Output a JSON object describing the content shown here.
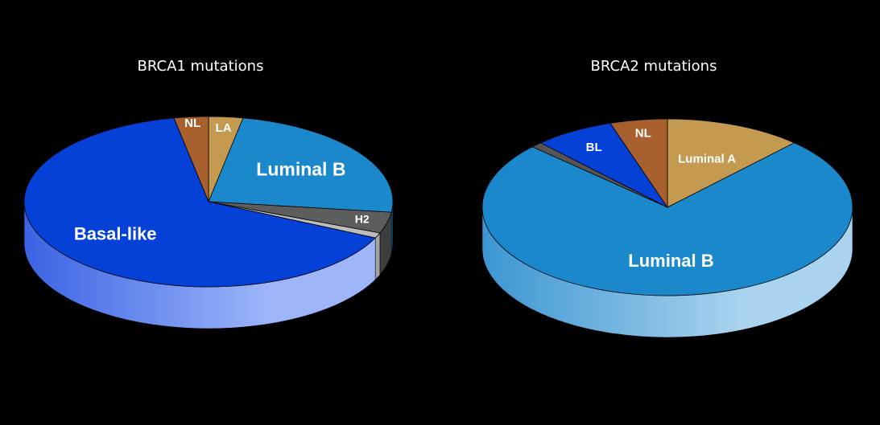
{
  "chart_data": [
    {
      "type": "pie",
      "title": "BRCA1 mutations",
      "slices": [
        {
          "label": "LA",
          "value": 3,
          "color": "#c49a50",
          "side": "#9a7638"
        },
        {
          "label": "Luminal B",
          "value": 24,
          "color": "#1b88cc",
          "side": "#0f5f92"
        },
        {
          "label": "H2",
          "value": 4,
          "color": "#5d5d5d",
          "side": "#3e3e3e"
        },
        {
          "label": "",
          "value": 1,
          "color": "#bdbdbd",
          "side": "#a5a5a5"
        },
        {
          "label": "Basal-like",
          "value": 65,
          "color": "#0541d6",
          "side": "#4c7cf2"
        },
        {
          "label": "NL",
          "value": 3,
          "color": "#a8602e",
          "side": "#7a4420"
        }
      ]
    },
    {
      "type": "pie",
      "title": "BRCA2 mutations",
      "slices": [
        {
          "label": "Luminal A",
          "value": 12,
          "color": "#c49a50",
          "side": "#9a7638"
        },
        {
          "label": "Luminal B",
          "value": 75,
          "color": "#1b88cc",
          "side": "#5aaee0"
        },
        {
          "label": "",
          "value": 1,
          "color": "#555555",
          "side": "#3a3a3a"
        },
        {
          "label": "BL",
          "value": 7,
          "color": "#0541d6",
          "side": "#0a36a8"
        },
        {
          "label": "NL",
          "value": 5,
          "color": "#a8602e",
          "side": "#7a4420"
        }
      ]
    }
  ]
}
